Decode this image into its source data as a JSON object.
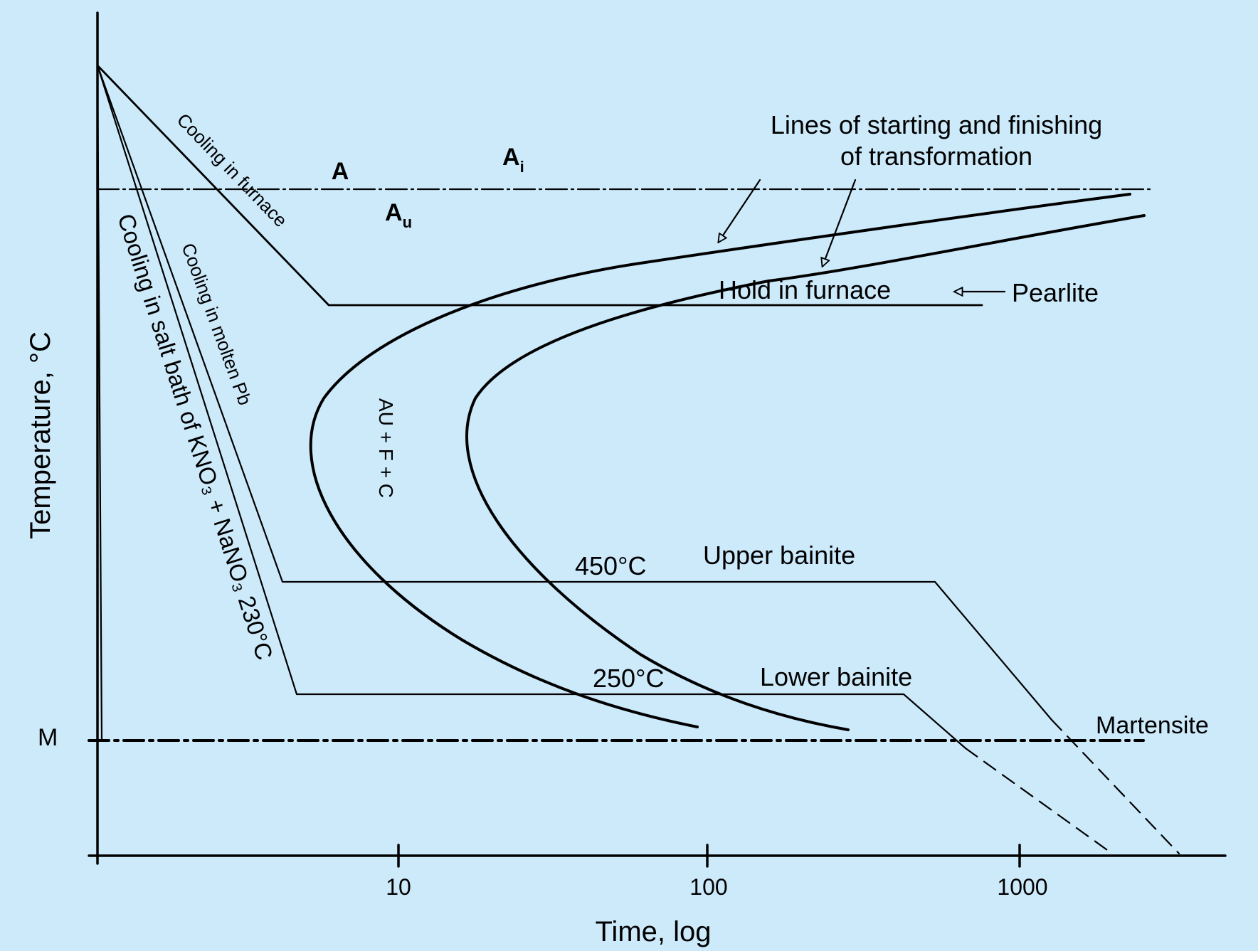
{
  "diagram": {
    "colors": {
      "background": "#cdeafb",
      "ink": "#000000"
    },
    "axes": {
      "xlabel": "Time, log",
      "ylabel": "Temperature, °C",
      "x_ticks": [
        "10",
        "100",
        "1000"
      ],
      "scale": "log"
    },
    "regions": {
      "austenite": "A",
      "ai": "A",
      "ai_sub": "i",
      "au": "A",
      "au_sub": "u",
      "mixture": "AU + F + C"
    },
    "annotations": {
      "transformation_lines_1": "Lines of starting and finishing",
      "transformation_lines_2": "of transformation",
      "hold": "Hold in furnace",
      "pearlite": "Pearlite",
      "upper_bainite": "Upper bainite",
      "lower_bainite": "Lower bainite",
      "martensite": "Martensite",
      "m_label": "M",
      "temp_450": "450°C",
      "temp_250": "250°C"
    },
    "cooling_paths": {
      "furnace": "Cooling in furnace",
      "molten_pb": "Cooling in molten Pb",
      "salt_bath": "Cooling in salt bath of KNO₃ + NaNO₃ 230°C"
    }
  }
}
